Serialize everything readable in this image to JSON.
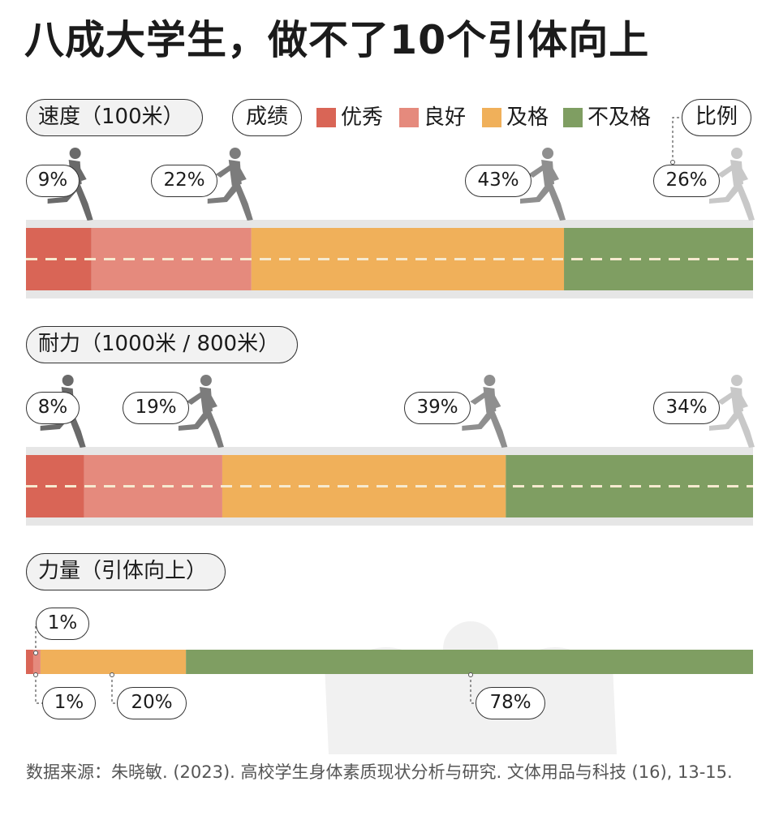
{
  "title": "八成大学生，做不了10个引体向上",
  "legend": {
    "label": "成绩",
    "items": [
      {
        "label": "优秀",
        "color": "#d96556"
      },
      {
        "label": "良好",
        "color": "#e58a7d"
      },
      {
        "label": "及格",
        "color": "#f0b05a"
      },
      {
        "label": "不及格",
        "color": "#7f9e62"
      }
    ],
    "ratio_label": "比例"
  },
  "source": "数据来源：朱晓敏. (2023). 高校学生身体素质现状分析与研究. 文体用品与科技 (16), 13-15.",
  "chart_data": [
    {
      "type": "bar",
      "title": "速度（100米）",
      "categories": [
        "优秀",
        "良好",
        "及格",
        "不及格"
      ],
      "values": [
        9,
        22,
        43,
        26
      ],
      "labels": [
        "9%",
        "22%",
        "43%",
        "26%"
      ],
      "ylim": [
        0,
        100
      ]
    },
    {
      "type": "bar",
      "title": "耐力（1000米 / 800米）",
      "categories": [
        "优秀",
        "良好",
        "及格",
        "不及格"
      ],
      "values": [
        8,
        19,
        39,
        34
      ],
      "labels": [
        "8%",
        "19%",
        "39%",
        "34%"
      ],
      "ylim": [
        0,
        100
      ]
    },
    {
      "type": "bar",
      "title": "力量（引体向上）",
      "categories": [
        "优秀",
        "良好",
        "及格",
        "不及格"
      ],
      "values": [
        1,
        1,
        20,
        78
      ],
      "labels": [
        "1%",
        "1%",
        "20%",
        "78%"
      ],
      "ylim": [
        0,
        100
      ]
    }
  ]
}
